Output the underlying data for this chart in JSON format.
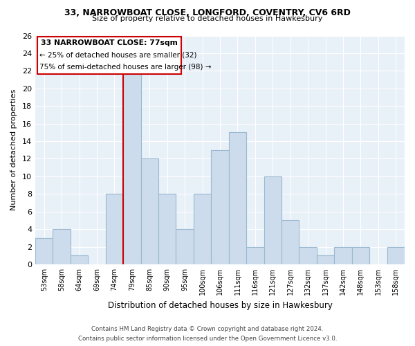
{
  "title1": "33, NARROWBOAT CLOSE, LONGFORD, COVENTRY, CV6 6RD",
  "title2": "Size of property relative to detached houses in Hawkesbury",
  "xlabel": "Distribution of detached houses by size in Hawkesbury",
  "ylabel": "Number of detached properties",
  "bin_labels": [
    "53sqm",
    "58sqm",
    "64sqm",
    "69sqm",
    "74sqm",
    "79sqm",
    "85sqm",
    "90sqm",
    "95sqm",
    "100sqm",
    "106sqm",
    "111sqm",
    "116sqm",
    "121sqm",
    "127sqm",
    "132sqm",
    "137sqm",
    "142sqm",
    "148sqm",
    "153sqm",
    "158sqm"
  ],
  "bar_heights": [
    3,
    4,
    1,
    0,
    8,
    22,
    12,
    8,
    4,
    8,
    13,
    15,
    2,
    10,
    5,
    2,
    1,
    2,
    2,
    0,
    2
  ],
  "bar_color": "#ccdcec",
  "bar_edgecolor": "#9ab8d0",
  "annotation_line1": "33 NARROWBOAT CLOSE: 77sqm",
  "annotation_line2": "← 25% of detached houses are smaller (32)",
  "annotation_line3": "75% of semi-detached houses are larger (98) →",
  "line_color": "#cc0000",
  "annotation_box_facecolor": "#ffffff",
  "annotation_box_edgecolor": "#cc0000",
  "ylim": [
    0,
    26
  ],
  "yticks": [
    0,
    2,
    4,
    6,
    8,
    10,
    12,
    14,
    16,
    18,
    20,
    22,
    24,
    26
  ],
  "footer1": "Contains HM Land Registry data © Crown copyright and database right 2024.",
  "footer2": "Contains public sector information licensed under the Open Government Licence v3.0.",
  "background_color": "#ffffff",
  "plot_bg_color": "#e8f0f8",
  "grid_color": "#ffffff"
}
